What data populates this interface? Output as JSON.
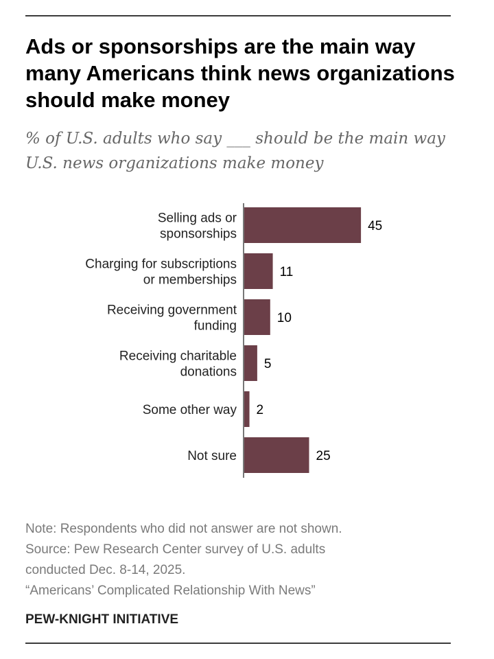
{
  "title": "Ads or sponsorships are the main way many Americans think news organizations should make money",
  "subtitle": "% of U.S. adults who say ___ should be the main way U.S. news organizations make money",
  "chart_data": {
    "type": "bar",
    "orientation": "horizontal",
    "categories": [
      [
        "Selling ads or",
        "sponsorships"
      ],
      [
        "Charging for subscriptions",
        "or memberships"
      ],
      [
        "Receiving government",
        "funding"
      ],
      [
        "Receiving charitable",
        "donations"
      ],
      [
        "Some other way"
      ],
      [
        "Not sure"
      ]
    ],
    "values": [
      45,
      11,
      10,
      5,
      2,
      25
    ],
    "bar_color": "#6b3f48",
    "grid": false
  },
  "notes": [
    "Note: Respondents who did not answer are not shown.",
    "Source: Pew Research Center survey of U.S. adults",
    "conducted Dec. 8-14, 2025.",
    "“Americans’ Complicated Relationship With News”"
  ],
  "brand": "PEW-KNIGHT INITIATIVE"
}
